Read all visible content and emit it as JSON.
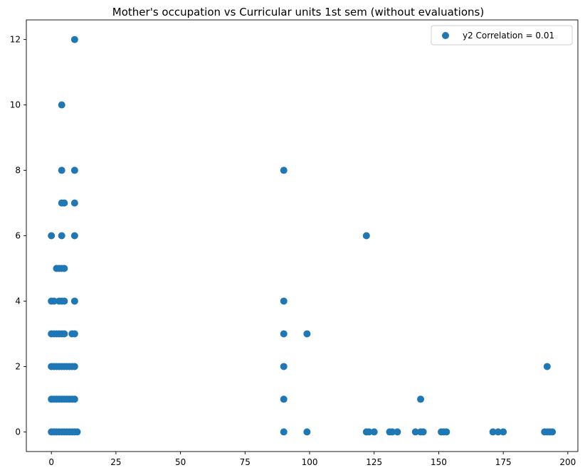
{
  "chart_data": {
    "type": "scatter",
    "title": "Mother's occupation vs Curricular units 1st sem (without evaluations)",
    "xlabel": "",
    "ylabel": "",
    "xlim": [
      -9.7,
      203.9
    ],
    "ylim": [
      -0.6,
      12.6
    ],
    "xticks": [
      0,
      25,
      50,
      75,
      100,
      125,
      150,
      175,
      200
    ],
    "yticks": [
      0,
      2,
      4,
      6,
      8,
      10,
      12
    ],
    "grid": false,
    "legend": "top-right",
    "color": "#1f77b4",
    "series": [
      {
        "name": "y2 Correlation = 0.01",
        "points": [
          [
            0,
            0
          ],
          [
            1,
            0
          ],
          [
            2,
            0
          ],
          [
            3,
            0
          ],
          [
            4,
            0
          ],
          [
            5,
            0
          ],
          [
            6,
            0
          ],
          [
            7,
            0
          ],
          [
            8,
            0
          ],
          [
            9,
            0
          ],
          [
            10,
            0
          ],
          [
            90,
            0
          ],
          [
            99,
            0
          ],
          [
            122,
            0
          ],
          [
            123,
            0
          ],
          [
            125,
            0
          ],
          [
            131,
            0
          ],
          [
            132,
            0
          ],
          [
            134,
            0
          ],
          [
            141,
            0
          ],
          [
            143,
            0
          ],
          [
            144,
            0
          ],
          [
            151,
            0
          ],
          [
            152,
            0
          ],
          [
            153,
            0
          ],
          [
            171,
            0
          ],
          [
            173,
            0
          ],
          [
            175,
            0
          ],
          [
            191,
            0
          ],
          [
            192,
            0
          ],
          [
            193,
            0
          ],
          [
            194,
            0
          ],
          [
            0,
            1
          ],
          [
            1,
            1
          ],
          [
            2,
            1
          ],
          [
            3,
            1
          ],
          [
            4,
            1
          ],
          [
            5,
            1
          ],
          [
            6,
            1
          ],
          [
            7,
            1
          ],
          [
            8,
            1
          ],
          [
            9,
            1
          ],
          [
            90,
            1
          ],
          [
            143,
            1
          ],
          [
            0,
            2
          ],
          [
            1,
            2
          ],
          [
            2,
            2
          ],
          [
            3,
            2
          ],
          [
            4,
            2
          ],
          [
            5,
            2
          ],
          [
            6,
            2
          ],
          [
            7,
            2
          ],
          [
            8,
            2
          ],
          [
            9,
            2
          ],
          [
            90,
            2
          ],
          [
            192,
            2
          ],
          [
            0,
            3
          ],
          [
            1,
            3
          ],
          [
            2,
            3
          ],
          [
            3,
            3
          ],
          [
            4,
            3
          ],
          [
            5,
            3
          ],
          [
            8,
            3
          ],
          [
            9,
            3
          ],
          [
            90,
            3
          ],
          [
            99,
            3
          ],
          [
            0,
            4
          ],
          [
            1,
            4
          ],
          [
            3,
            4
          ],
          [
            4,
            4
          ],
          [
            5,
            4
          ],
          [
            9,
            4
          ],
          [
            90,
            4
          ],
          [
            2,
            5
          ],
          [
            3,
            5
          ],
          [
            4,
            5
          ],
          [
            5,
            5
          ],
          [
            0,
            6
          ],
          [
            4,
            6
          ],
          [
            9,
            6
          ],
          [
            122,
            6
          ],
          [
            4,
            7
          ],
          [
            5,
            7
          ],
          [
            9,
            7
          ],
          [
            4,
            8
          ],
          [
            9,
            8
          ],
          [
            90,
            8
          ],
          [
            4,
            10
          ],
          [
            9,
            12
          ]
        ]
      }
    ]
  }
}
